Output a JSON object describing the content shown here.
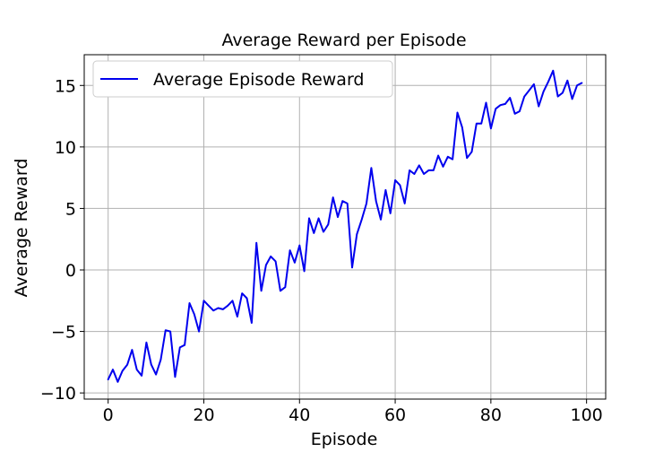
{
  "chart_data": {
    "type": "line",
    "title": "Average Reward per Episode",
    "xlabel": "Episode",
    "ylabel": "Average Reward",
    "xlim": [
      -5,
      104
    ],
    "ylim": [
      -10.5,
      17.5
    ],
    "xticks": [
      0,
      20,
      40,
      60,
      80,
      100
    ],
    "yticks": [
      -10,
      -5,
      0,
      5,
      10,
      15
    ],
    "ytick_labels": [
      "−10",
      "−5",
      "0",
      "5",
      "10",
      "15"
    ],
    "grid": true,
    "legend": "top-left",
    "series": [
      {
        "name": "Average Episode Reward",
        "color": "#0000ee",
        "x": [
          0,
          1,
          2,
          3,
          4,
          5,
          6,
          7,
          8,
          9,
          10,
          11,
          12,
          13,
          14,
          15,
          16,
          17,
          18,
          19,
          20,
          21,
          22,
          23,
          24,
          25,
          26,
          27,
          28,
          29,
          30,
          31,
          32,
          33,
          34,
          35,
          36,
          37,
          38,
          39,
          40,
          41,
          42,
          43,
          44,
          45,
          46,
          47,
          48,
          49,
          50,
          51,
          52,
          53,
          54,
          55,
          56,
          57,
          58,
          59,
          60,
          61,
          62,
          63,
          64,
          65,
          66,
          67,
          68,
          69,
          70,
          71,
          72,
          73,
          74,
          75,
          76,
          77,
          78,
          79,
          80,
          81,
          82,
          83,
          84,
          85,
          86,
          87,
          88,
          89,
          90,
          91,
          92,
          93,
          94,
          95,
          96,
          97,
          98,
          99
        ],
        "values": [
          -8.9,
          -8.1,
          -9.1,
          -8.2,
          -7.7,
          -6.5,
          -8.1,
          -8.6,
          -5.9,
          -7.7,
          -8.5,
          -7.3,
          -4.9,
          -5.0,
          -8.7,
          -6.3,
          -6.1,
          -2.7,
          -3.6,
          -5.0,
          -2.5,
          -2.9,
          -3.3,
          -3.1,
          -3.2,
          -2.9,
          -2.5,
          -3.8,
          -1.9,
          -2.3,
          -4.3,
          2.2,
          -1.7,
          0.4,
          1.1,
          0.7,
          -1.7,
          -1.4,
          1.6,
          0.6,
          2.0,
          -0.1,
          4.2,
          3.0,
          4.2,
          3.1,
          3.7,
          5.9,
          4.3,
          5.6,
          5.4,
          0.2,
          2.9,
          4.1,
          5.4,
          8.3,
          5.6,
          4.1,
          6.5,
          4.6,
          7.3,
          6.9,
          5.4,
          8.1,
          7.8,
          8.5,
          7.8,
          8.1,
          8.1,
          9.3,
          8.4,
          9.2,
          9.0,
          12.8,
          11.6,
          9.1,
          9.6,
          11.9,
          11.9,
          13.6,
          11.5,
          13.1,
          13.4,
          13.5,
          14.0,
          12.7,
          12.9,
          14.1,
          14.6,
          15.1,
          13.3,
          14.5,
          15.3,
          16.2,
          14.1,
          14.4,
          15.4,
          13.9,
          15.0,
          15.2
        ]
      }
    ]
  }
}
